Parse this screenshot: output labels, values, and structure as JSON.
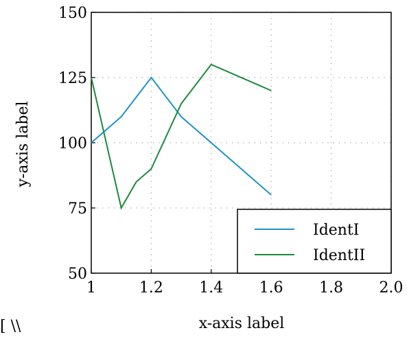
{
  "chart_data": {
    "type": "line",
    "title": "",
    "xlabel": "x-axis label",
    "ylabel": "y-axis label",
    "xlim": [
      1,
      2
    ],
    "ylim": [
      50,
      150
    ],
    "xticks": [
      1,
      1.2,
      1.4,
      1.6,
      1.8,
      2
    ],
    "xtick_labels": [
      "1",
      "1.2",
      "1.4",
      "1.6",
      "1.8",
      "2.0"
    ],
    "yticks": [
      50,
      75,
      100,
      125,
      150
    ],
    "ytick_labels": [
      "50",
      "75",
      "100",
      "125",
      "150"
    ],
    "grid": true,
    "legend_position": "bottom-right",
    "series": [
      {
        "name": "IdentI",
        "color": "#1f92c8",
        "x": [
          1.0,
          1.1,
          1.2,
          1.3,
          1.6
        ],
        "y": [
          100,
          110,
          125,
          110,
          80
        ]
      },
      {
        "name": "IdentII",
        "color": "#1a8a3a",
        "x": [
          1.0,
          1.1,
          1.15,
          1.2,
          1.3,
          1.4,
          1.6
        ],
        "y": [
          125,
          75,
          85,
          90,
          115,
          130,
          120
        ]
      }
    ]
  },
  "stray_text": "[ \\\\"
}
